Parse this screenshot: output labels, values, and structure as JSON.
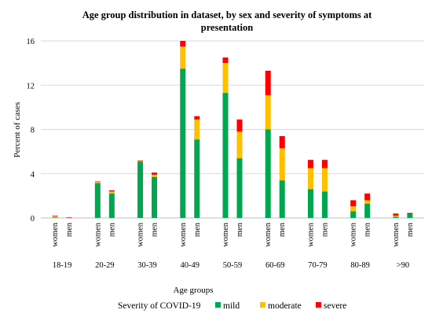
{
  "chart_data": {
    "type": "bar",
    "stacked": true,
    "title": "Age group distribution in dataset, by sex and severity of symptoms at presentation",
    "title_lines": [
      "Age group distribution in dataset, by sex and severity of symptoms at",
      "presentation"
    ],
    "ylabel": "Percent of cases",
    "xlabel": "Age groups",
    "ylim": [
      0,
      16
    ],
    "yticks": [
      "0",
      "4",
      "8",
      "12",
      "16"
    ],
    "ytick_values": [
      0,
      4,
      8,
      12,
      16
    ],
    "gridlines": true,
    "legend_title": "Severity of COVID-19",
    "legend_placement": "bottom",
    "groups": [
      "18-19",
      "20-29",
      "30-39",
      "40-49",
      "50-59",
      "60-69",
      "70-79",
      "80-89",
      ">90"
    ],
    "subcategories": [
      "women",
      "men"
    ],
    "series": [
      {
        "name": "mild",
        "color": "#00A650",
        "values": [
          0.05,
          0.0,
          3.15,
          2.2,
          5.1,
          3.7,
          13.5,
          7.1,
          11.3,
          5.4,
          8.0,
          3.4,
          2.6,
          2.4,
          0.6,
          1.3,
          0.1,
          0.35
        ]
      },
      {
        "name": "moderate",
        "color": "#FFC000",
        "values": [
          0.1,
          0.0,
          0.1,
          0.2,
          0.05,
          0.2,
          2.0,
          1.8,
          2.7,
          2.4,
          3.1,
          2.9,
          1.9,
          2.1,
          0.45,
          0.3,
          0.1,
          0.0
        ]
      },
      {
        "name": "severe",
        "color": "#FF0000",
        "values": [
          0.05,
          0.05,
          0.05,
          0.1,
          0.05,
          0.2,
          0.5,
          0.3,
          0.5,
          1.1,
          2.2,
          1.1,
          0.75,
          0.75,
          0.55,
          0.6,
          0.2,
          0.1
        ]
      }
    ]
  }
}
